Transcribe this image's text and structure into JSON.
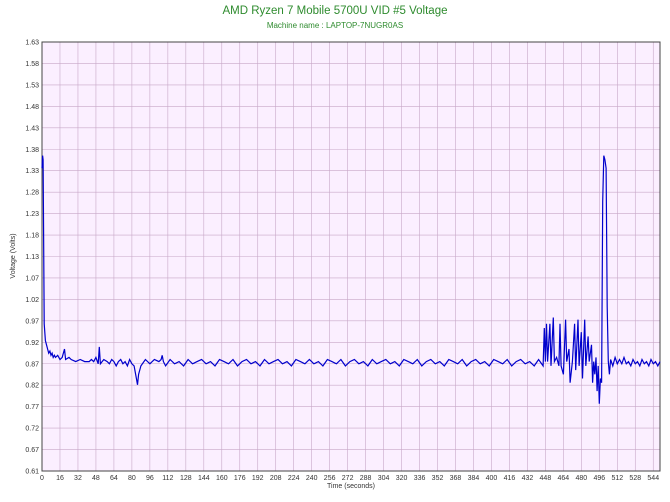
{
  "chart_data": {
    "type": "line",
    "title": "AMD Ryzen 7 Mobile 5700U VID #5 Voltage",
    "subtitle": "Machine name : LAPTOP-7NUGR0AS",
    "xlabel": "Time (seconds)",
    "ylabel": "Voltage (Volts)",
    "xlim": [
      0,
      550
    ],
    "ylim": [
      0.61,
      1.63
    ],
    "grid": true,
    "x_ticks": [
      "0",
      "16",
      "32",
      "48",
      "64",
      "80",
      "96",
      "112",
      "128",
      "144",
      "160",
      "176",
      "192",
      "208",
      "224",
      "240",
      "256",
      "272",
      "288",
      "304",
      "320",
      "336",
      "352",
      "368",
      "384",
      "400",
      "416",
      "432",
      "448",
      "464",
      "480",
      "496",
      "512",
      "528",
      "544"
    ],
    "y_ticks": [
      "1.63",
      "1.58",
      "1.53",
      "1.48",
      "1.43",
      "1.38",
      "1.33",
      "1.28",
      "1.23",
      "1.18",
      "1.13",
      "1.07",
      "1.02",
      "0.97",
      "0.92",
      "0.87",
      "0.82",
      "0.77",
      "0.72",
      "0.67",
      "0.61"
    ],
    "colors": {
      "plot_bg": "#fbefff",
      "grid": "#c8a8c8",
      "line": "#0000cc",
      "title": "#2e8b2e"
    },
    "series": [
      {
        "values": [
          [
            0,
            1.33
          ],
          [
            0.5,
            1.36
          ],
          [
            1,
            1.35
          ],
          [
            1.5,
            1.14
          ],
          [
            2,
            0.96
          ],
          [
            3,
            0.92
          ],
          [
            4,
            0.91
          ],
          [
            5,
            0.9
          ],
          [
            6,
            0.89
          ],
          [
            7,
            0.895
          ],
          [
            8,
            0.885
          ],
          [
            9,
            0.89
          ],
          [
            10,
            0.88
          ],
          [
            11,
            0.885
          ],
          [
            12,
            0.88
          ],
          [
            14,
            0.885
          ],
          [
            16,
            0.875
          ],
          [
            18,
            0.88
          ],
          [
            20,
            0.9
          ],
          [
            21,
            0.875
          ],
          [
            24,
            0.88
          ],
          [
            26,
            0.875
          ],
          [
            30,
            0.87
          ],
          [
            34,
            0.875
          ],
          [
            38,
            0.87
          ],
          [
            42,
            0.87
          ],
          [
            44,
            0.875
          ],
          [
            46,
            0.87
          ],
          [
            48,
            0.88
          ],
          [
            50,
            0.865
          ],
          [
            51,
            0.905
          ],
          [
            52,
            0.865
          ],
          [
            55,
            0.875
          ],
          [
            58,
            0.87
          ],
          [
            60,
            0.865
          ],
          [
            62,
            0.875
          ],
          [
            64,
            0.87
          ],
          [
            66,
            0.86
          ],
          [
            68,
            0.87
          ],
          [
            70,
            0.875
          ],
          [
            72,
            0.865
          ],
          [
            74,
            0.87
          ],
          [
            76,
            0.86
          ],
          [
            78,
            0.875
          ],
          [
            80,
            0.865
          ],
          [
            82,
            0.86
          ],
          [
            84,
            0.83
          ],
          [
            85,
            0.815
          ],
          [
            86,
            0.84
          ],
          [
            88,
            0.86
          ],
          [
            92,
            0.875
          ],
          [
            96,
            0.865
          ],
          [
            100,
            0.875
          ],
          [
            104,
            0.87
          ],
          [
            106,
            0.875
          ],
          [
            107,
            0.885
          ],
          [
            108,
            0.87
          ],
          [
            110,
            0.86
          ],
          [
            114,
            0.875
          ],
          [
            118,
            0.865
          ],
          [
            122,
            0.87
          ],
          [
            126,
            0.86
          ],
          [
            130,
            0.875
          ],
          [
            134,
            0.865
          ],
          [
            138,
            0.87
          ],
          [
            142,
            0.875
          ],
          [
            146,
            0.865
          ],
          [
            150,
            0.87
          ],
          [
            154,
            0.86
          ],
          [
            158,
            0.875
          ],
          [
            162,
            0.87
          ],
          [
            166,
            0.865
          ],
          [
            170,
            0.875
          ],
          [
            174,
            0.86
          ],
          [
            178,
            0.87
          ],
          [
            182,
            0.875
          ],
          [
            186,
            0.865
          ],
          [
            190,
            0.87
          ],
          [
            194,
            0.86
          ],
          [
            198,
            0.875
          ],
          [
            202,
            0.865
          ],
          [
            206,
            0.87
          ],
          [
            210,
            0.875
          ],
          [
            214,
            0.865
          ],
          [
            218,
            0.87
          ],
          [
            222,
            0.86
          ],
          [
            226,
            0.875
          ],
          [
            230,
            0.87
          ],
          [
            234,
            0.865
          ],
          [
            238,
            0.875
          ],
          [
            242,
            0.865
          ],
          [
            246,
            0.87
          ],
          [
            250,
            0.86
          ],
          [
            254,
            0.875
          ],
          [
            258,
            0.87
          ],
          [
            262,
            0.865
          ],
          [
            266,
            0.875
          ],
          [
            270,
            0.86
          ],
          [
            274,
            0.87
          ],
          [
            278,
            0.875
          ],
          [
            282,
            0.865
          ],
          [
            286,
            0.87
          ],
          [
            290,
            0.86
          ],
          [
            294,
            0.875
          ],
          [
            298,
            0.865
          ],
          [
            302,
            0.87
          ],
          [
            306,
            0.875
          ],
          [
            310,
            0.865
          ],
          [
            314,
            0.87
          ],
          [
            318,
            0.86
          ],
          [
            322,
            0.875
          ],
          [
            326,
            0.87
          ],
          [
            330,
            0.865
          ],
          [
            334,
            0.875
          ],
          [
            338,
            0.86
          ],
          [
            342,
            0.87
          ],
          [
            346,
            0.875
          ],
          [
            350,
            0.865
          ],
          [
            354,
            0.87
          ],
          [
            358,
            0.86
          ],
          [
            362,
            0.875
          ],
          [
            366,
            0.87
          ],
          [
            370,
            0.865
          ],
          [
            374,
            0.875
          ],
          [
            378,
            0.86
          ],
          [
            382,
            0.87
          ],
          [
            386,
            0.875
          ],
          [
            390,
            0.865
          ],
          [
            394,
            0.87
          ],
          [
            398,
            0.86
          ],
          [
            402,
            0.875
          ],
          [
            406,
            0.87
          ],
          [
            410,
            0.865
          ],
          [
            414,
            0.875
          ],
          [
            418,
            0.86
          ],
          [
            422,
            0.87
          ],
          [
            426,
            0.875
          ],
          [
            430,
            0.865
          ],
          [
            434,
            0.87
          ],
          [
            438,
            0.86
          ],
          [
            442,
            0.875
          ],
          [
            446,
            0.86
          ],
          [
            447,
            0.95
          ],
          [
            448,
            0.87
          ],
          [
            449,
            0.96
          ],
          [
            450,
            0.87
          ],
          [
            452,
            0.96
          ],
          [
            453,
            0.86
          ],
          [
            455,
            0.975
          ],
          [
            456,
            0.87
          ],
          [
            458,
            0.88
          ],
          [
            460,
            0.86
          ],
          [
            461,
            0.96
          ],
          [
            462,
            0.86
          ],
          [
            464,
            0.84
          ],
          [
            466,
            0.97
          ],
          [
            467,
            0.87
          ],
          [
            469,
            0.9
          ],
          [
            470,
            0.82
          ],
          [
            472,
            0.87
          ],
          [
            474,
            0.96
          ],
          [
            475,
            0.85
          ],
          [
            477,
            0.97
          ],
          [
            478,
            0.86
          ],
          [
            480,
            0.94
          ],
          [
            481,
            0.83
          ],
          [
            483,
            0.97
          ],
          [
            484,
            0.86
          ],
          [
            486,
            0.93
          ],
          [
            487,
            0.87
          ],
          [
            489,
            0.91
          ],
          [
            490,
            0.82
          ],
          [
            491,
            0.87
          ],
          [
            492,
            0.84
          ],
          [
            493,
            0.88
          ],
          [
            494,
            0.8
          ],
          [
            495,
            0.86
          ],
          [
            496,
            0.77
          ],
          [
            497,
            0.83
          ],
          [
            498,
            0.82
          ],
          [
            499,
            1.25
          ],
          [
            500,
            1.36
          ],
          [
            501,
            1.35
          ],
          [
            502,
            1.33
          ],
          [
            503,
            1.0
          ],
          [
            504,
            0.87
          ],
          [
            505,
            0.84
          ],
          [
            506,
            0.875
          ],
          [
            508,
            0.86
          ],
          [
            510,
            0.88
          ],
          [
            512,
            0.865
          ],
          [
            514,
            0.875
          ],
          [
            516,
            0.865
          ],
          [
            518,
            0.88
          ],
          [
            520,
            0.865
          ],
          [
            522,
            0.87
          ],
          [
            524,
            0.86
          ],
          [
            526,
            0.875
          ],
          [
            528,
            0.865
          ],
          [
            530,
            0.87
          ],
          [
            532,
            0.86
          ],
          [
            534,
            0.875
          ],
          [
            536,
            0.865
          ],
          [
            538,
            0.87
          ],
          [
            540,
            0.86
          ],
          [
            542,
            0.875
          ],
          [
            544,
            0.865
          ],
          [
            546,
            0.87
          ],
          [
            548,
            0.86
          ],
          [
            550,
            0.87
          ]
        ]
      }
    ]
  }
}
